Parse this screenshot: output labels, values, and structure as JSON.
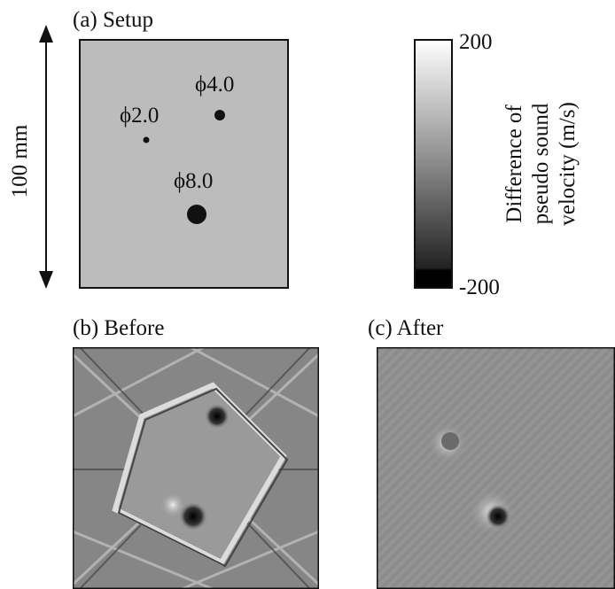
{
  "figure": {
    "panel_a": {
      "label": "(a) Setup",
      "scale": "100 mm",
      "holes": [
        "ϕ4.0",
        "ϕ2.0",
        "ϕ8.0"
      ]
    },
    "colorbar": {
      "max": "200",
      "min": "-200",
      "title": [
        "Difference of",
        "pseudo sound",
        "velocity (m/s)"
      ]
    },
    "panel_b": {
      "label": "(b) Before"
    },
    "panel_c": {
      "label": "(c) After"
    }
  }
}
